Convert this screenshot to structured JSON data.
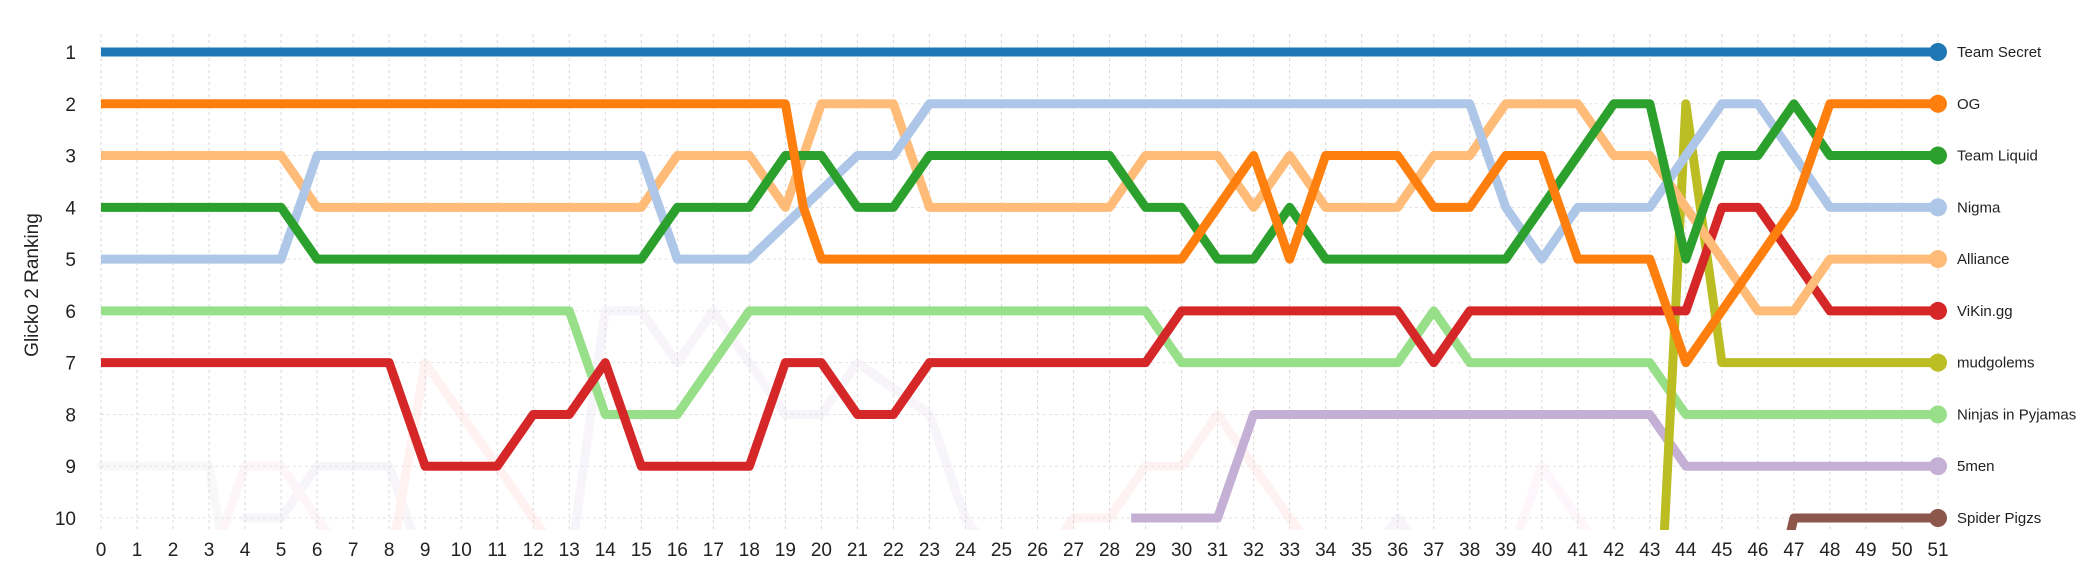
{
  "chart_data": {
    "type": "line",
    "title": "",
    "xlabel": "",
    "ylabel": "Glicko 2 Ranking",
    "xlim": [
      0,
      51
    ],
    "ylim": [
      1,
      10
    ],
    "y_inverted": true,
    "grid": true,
    "legend_placement": "right",
    "x_ticks": [
      "0",
      "1",
      "2",
      "3",
      "4",
      "5",
      "6",
      "7",
      "8",
      "9",
      "10",
      "11",
      "12",
      "13",
      "14",
      "15",
      "16",
      "17",
      "18",
      "19",
      "20",
      "21",
      "22",
      "23",
      "24",
      "25",
      "26",
      "27",
      "28",
      "29",
      "30",
      "31",
      "32",
      "33",
      "34",
      "35",
      "36",
      "37",
      "38",
      "39",
      "40",
      "41",
      "42",
      "43",
      "44",
      "45",
      "46",
      "47",
      "48",
      "49",
      "50",
      "51"
    ],
    "y_ticks": [
      "1",
      "2",
      "3",
      "4",
      "5",
      "6",
      "7",
      "8",
      "9",
      "10"
    ],
    "series": [
      {
        "name": "Team Secret",
        "color": "#1f77b4",
        "points": [
          [
            0,
            1
          ],
          [
            51,
            1
          ]
        ]
      },
      {
        "name": "OG",
        "color": "#ff7f0e",
        "points": [
          [
            0,
            2
          ],
          [
            19,
            2
          ],
          [
            19.5,
            4
          ],
          [
            20,
            5
          ],
          [
            30,
            5
          ],
          [
            32,
            3
          ],
          [
            33,
            5
          ],
          [
            34,
            3
          ],
          [
            36,
            3
          ],
          [
            37,
            4
          ],
          [
            38,
            4
          ],
          [
            39,
            3
          ],
          [
            40,
            3
          ],
          [
            41,
            5
          ],
          [
            42,
            5
          ],
          [
            43,
            5
          ],
          [
            44,
            7
          ],
          [
            46,
            5
          ],
          [
            47,
            4
          ],
          [
            48,
            2
          ],
          [
            51,
            2
          ]
        ]
      },
      {
        "name": "Team Liquid",
        "color": "#2ca02c",
        "points": [
          [
            0,
            4
          ],
          [
            5,
            4
          ],
          [
            6,
            5
          ],
          [
            15,
            5
          ],
          [
            16,
            4
          ],
          [
            18,
            4
          ],
          [
            19,
            3
          ],
          [
            20,
            3
          ],
          [
            21,
            4
          ],
          [
            22,
            4
          ],
          [
            23,
            3
          ],
          [
            28,
            3
          ],
          [
            29,
            4
          ],
          [
            30,
            4
          ],
          [
            31,
            5
          ],
          [
            32,
            5
          ],
          [
            33,
            4
          ],
          [
            34,
            5
          ],
          [
            39,
            5
          ],
          [
            42,
            2
          ],
          [
            43,
            2
          ],
          [
            44,
            5
          ],
          [
            45,
            3
          ],
          [
            46,
            3
          ],
          [
            47,
            2
          ],
          [
            48,
            3
          ],
          [
            51,
            3
          ]
        ]
      },
      {
        "name": "Nigma",
        "color": "#aec7e8",
        "points": [
          [
            0,
            5
          ],
          [
            5,
            5
          ],
          [
            6,
            3
          ],
          [
            15,
            3
          ],
          [
            16,
            5
          ],
          [
            18,
            5
          ],
          [
            21,
            3
          ],
          [
            22,
            3
          ],
          [
            23,
            2
          ],
          [
            38,
            2
          ],
          [
            39,
            4
          ],
          [
            40,
            5
          ],
          [
            41,
            4
          ],
          [
            43,
            4
          ],
          [
            45,
            2
          ],
          [
            46,
            2
          ],
          [
            48,
            4
          ],
          [
            51,
            4
          ]
        ]
      },
      {
        "name": "Alliance",
        "color": "#ffbb78",
        "points": [
          [
            0,
            3
          ],
          [
            5,
            3
          ],
          [
            6,
            4
          ],
          [
            15,
            4
          ],
          [
            16,
            3
          ],
          [
            18,
            3
          ],
          [
            19,
            4
          ],
          [
            20,
            2
          ],
          [
            22,
            2
          ],
          [
            23,
            4
          ],
          [
            28,
            4
          ],
          [
            29,
            3
          ],
          [
            31,
            3
          ],
          [
            32,
            4
          ],
          [
            33,
            3
          ],
          [
            34,
            4
          ],
          [
            36,
            4
          ],
          [
            37,
            3
          ],
          [
            38,
            3
          ],
          [
            39,
            2
          ],
          [
            41,
            2
          ],
          [
            42,
            3
          ],
          [
            43,
            3
          ],
          [
            44,
            4
          ],
          [
            46,
            6
          ],
          [
            47,
            6
          ],
          [
            48,
            5
          ],
          [
            51,
            5
          ]
        ]
      },
      {
        "name": "ViKin.gg",
        "color": "#d62728",
        "points": [
          [
            0,
            7
          ],
          [
            8,
            7
          ],
          [
            9,
            9
          ],
          [
            11,
            9
          ],
          [
            12,
            8
          ],
          [
            13,
            8
          ],
          [
            14,
            7
          ],
          [
            15,
            9
          ],
          [
            18,
            9
          ],
          [
            19,
            7
          ],
          [
            20,
            7
          ],
          [
            21,
            8
          ],
          [
            22,
            8
          ],
          [
            23,
            7
          ],
          [
            29,
            7
          ],
          [
            30,
            6
          ],
          [
            36,
            6
          ],
          [
            37,
            7
          ],
          [
            38,
            6
          ],
          [
            43,
            6
          ],
          [
            44,
            6
          ],
          [
            45,
            4
          ],
          [
            46,
            4
          ],
          [
            48,
            6
          ],
          [
            51,
            6
          ]
        ]
      },
      {
        "name": "mudgolems",
        "color": "#bcbd22",
        "points": [
          [
            43.35,
            11
          ],
          [
            44,
            2
          ],
          [
            45,
            7
          ],
          [
            51,
            7
          ]
        ]
      },
      {
        "name": "Ninjas in Pyjamas",
        "color": "#98df8a",
        "points": [
          [
            0,
            6
          ],
          [
            13,
            6
          ],
          [
            14,
            8
          ],
          [
            16,
            8
          ],
          [
            18,
            6
          ],
          [
            29,
            6
          ],
          [
            30,
            7
          ],
          [
            36,
            7
          ],
          [
            37,
            6
          ],
          [
            38,
            7
          ],
          [
            43,
            7
          ],
          [
            44,
            8
          ],
          [
            51,
            8
          ]
        ]
      },
      {
        "name": "5men",
        "color": "#c5b0d5",
        "points": [
          [
            28.6,
            10
          ],
          [
            29,
            10
          ],
          [
            31,
            10
          ],
          [
            32,
            8
          ],
          [
            43,
            8
          ],
          [
            44,
            9
          ],
          [
            51,
            9
          ]
        ]
      },
      {
        "name": "Spider Pigzs",
        "color": "#8c564b",
        "points": [
          [
            46.9,
            10.3
          ],
          [
            47,
            10
          ],
          [
            51,
            10
          ]
        ]
      }
    ]
  }
}
